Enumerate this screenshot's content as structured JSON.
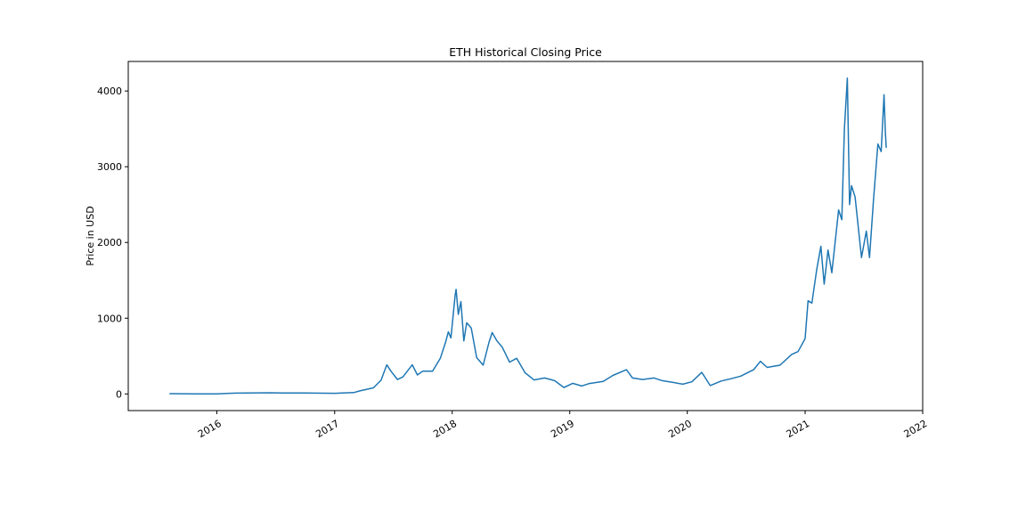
{
  "chart_data": {
    "type": "line",
    "title": "ETH Historical Closing Price",
    "xlabel": "",
    "ylabel": "Price in USD",
    "xlim": [
      "2015-04-01",
      "2022-01-01"
    ],
    "ylim": [
      -220,
      4390
    ],
    "x_ticks": [
      "2016",
      "2017",
      "2018",
      "2019",
      "2020",
      "2021",
      "2022"
    ],
    "y_ticks": [
      "0",
      "1000",
      "2000",
      "3000",
      "4000"
    ],
    "grid": false,
    "line_color": "#1f77b4",
    "series": [
      {
        "points": [
          [
            "2015-08-07",
            3
          ],
          [
            "2015-11-01",
            1
          ],
          [
            "2016-01-01",
            1
          ],
          [
            "2016-03-01",
            10
          ],
          [
            "2016-06-15",
            15
          ],
          [
            "2016-07-20",
            12
          ],
          [
            "2016-10-01",
            12
          ],
          [
            "2017-01-01",
            8
          ],
          [
            "2017-03-01",
            18
          ],
          [
            "2017-03-20",
            40
          ],
          [
            "2017-05-01",
            80
          ],
          [
            "2017-05-25",
            180
          ],
          [
            "2017-06-12",
            385
          ],
          [
            "2017-06-25",
            300
          ],
          [
            "2017-07-15",
            190
          ],
          [
            "2017-08-01",
            225
          ],
          [
            "2017-08-30",
            385
          ],
          [
            "2017-09-15",
            250
          ],
          [
            "2017-10-01",
            300
          ],
          [
            "2017-11-01",
            300
          ],
          [
            "2017-11-25",
            470
          ],
          [
            "2017-12-12",
            690
          ],
          [
            "2017-12-20",
            820
          ],
          [
            "2017-12-28",
            740
          ],
          [
            "2018-01-10",
            1300
          ],
          [
            "2018-01-13",
            1380
          ],
          [
            "2018-01-20",
            1050
          ],
          [
            "2018-01-28",
            1220
          ],
          [
            "2018-02-06",
            700
          ],
          [
            "2018-02-15",
            940
          ],
          [
            "2018-03-01",
            870
          ],
          [
            "2018-03-18",
            480
          ],
          [
            "2018-04-07",
            380
          ],
          [
            "2018-04-25",
            680
          ],
          [
            "2018-05-05",
            810
          ],
          [
            "2018-05-20",
            700
          ],
          [
            "2018-06-05",
            620
          ],
          [
            "2018-06-28",
            420
          ],
          [
            "2018-07-20",
            470
          ],
          [
            "2018-08-15",
            280
          ],
          [
            "2018-09-12",
            185
          ],
          [
            "2018-10-15",
            210
          ],
          [
            "2018-11-15",
            175
          ],
          [
            "2018-12-14",
            85
          ],
          [
            "2019-01-10",
            140
          ],
          [
            "2019-02-07",
            105
          ],
          [
            "2019-03-01",
            135
          ],
          [
            "2019-04-15",
            165
          ],
          [
            "2019-05-15",
            245
          ],
          [
            "2019-06-26",
            320
          ],
          [
            "2019-07-15",
            210
          ],
          [
            "2019-08-15",
            190
          ],
          [
            "2019-09-20",
            210
          ],
          [
            "2019-10-15",
            175
          ],
          [
            "2019-11-20",
            150
          ],
          [
            "2019-12-18",
            128
          ],
          [
            "2020-01-15",
            160
          ],
          [
            "2020-02-15",
            285
          ],
          [
            "2020-03-12",
            110
          ],
          [
            "2020-04-15",
            170
          ],
          [
            "2020-05-15",
            200
          ],
          [
            "2020-06-15",
            235
          ],
          [
            "2020-07-25",
            320
          ],
          [
            "2020-08-15",
            430
          ],
          [
            "2020-09-05",
            350
          ],
          [
            "2020-10-15",
            380
          ],
          [
            "2020-11-20",
            520
          ],
          [
            "2020-12-10",
            560
          ],
          [
            "2021-01-01",
            730
          ],
          [
            "2021-01-10",
            1230
          ],
          [
            "2021-01-22",
            1200
          ],
          [
            "2021-02-06",
            1640
          ],
          [
            "2021-02-19",
            1950
          ],
          [
            "2021-03-01",
            1450
          ],
          [
            "2021-03-13",
            1900
          ],
          [
            "2021-03-25",
            1600
          ],
          [
            "2021-04-15",
            2430
          ],
          [
            "2021-04-25",
            2300
          ],
          [
            "2021-05-03",
            3500
          ],
          [
            "2021-05-12",
            4170
          ],
          [
            "2021-05-19",
            2500
          ],
          [
            "2021-05-25",
            2750
          ],
          [
            "2021-06-05",
            2600
          ],
          [
            "2021-06-25",
            1800
          ],
          [
            "2021-07-10",
            2150
          ],
          [
            "2021-07-20",
            1800
          ],
          [
            "2021-08-01",
            2550
          ],
          [
            "2021-08-15",
            3300
          ],
          [
            "2021-08-25",
            3200
          ],
          [
            "2021-09-03",
            3950
          ],
          [
            "2021-09-07",
            3450
          ],
          [
            "2021-09-10",
            3250
          ]
        ]
      }
    ]
  }
}
